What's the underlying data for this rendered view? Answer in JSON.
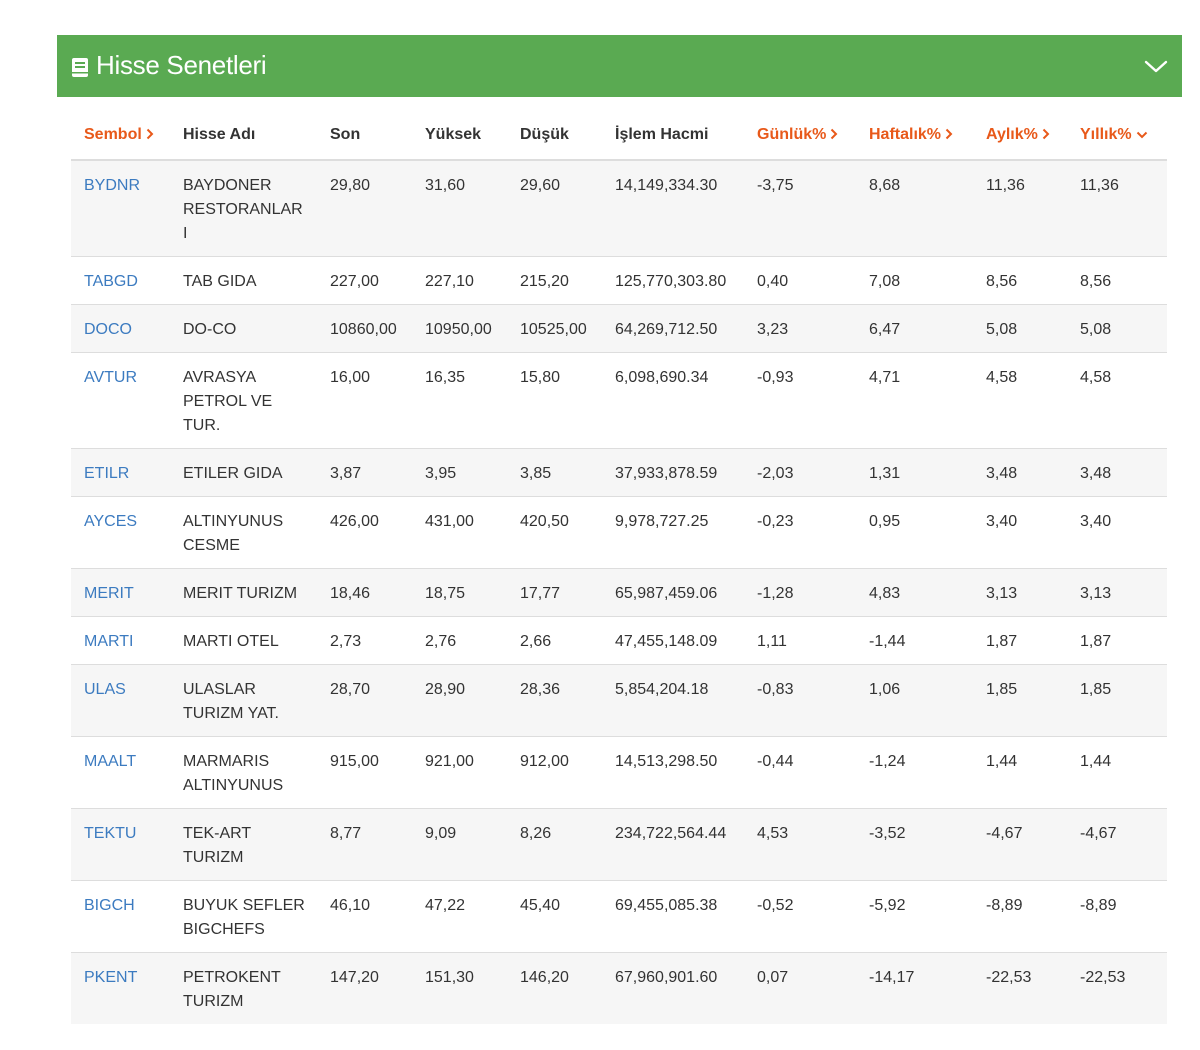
{
  "panel": {
    "title": "Hisse Senetleri",
    "book_icon": "book-icon",
    "collapse_icon": "chevron-down-icon",
    "header_color": "#5aaa52"
  },
  "colors": {
    "accent_sort": "#e8591a",
    "symbol_link": "#3c7bc0"
  },
  "table": {
    "headers": {
      "sembol": "Sembol",
      "hisse_adi": "Hisse Adı",
      "son": "Son",
      "yuksek": "Yüksek",
      "dusuk": "Düşük",
      "islem_hacmi": "İşlem Hacmi",
      "gunluk": "Günlük%",
      "haftalik": "Haftalık%",
      "aylik": "Aylık%",
      "yillik": "Yıllık%"
    },
    "rows": [
      {
        "symbol": "BYDNR",
        "name": "BAYDONER RESTORANLARI",
        "son": "29,80",
        "yuksek": "31,60",
        "dusuk": "29,60",
        "hacim": "14,149,334.30",
        "gunluk": "-3,75",
        "haftalik": "8,68",
        "aylik": "11,36",
        "yillik": "11,36"
      },
      {
        "symbol": "TABGD",
        "name": "TAB GIDA",
        "son": "227,00",
        "yuksek": "227,10",
        "dusuk": "215,20",
        "hacim": "125,770,303.80",
        "gunluk": "0,40",
        "haftalik": "7,08",
        "aylik": "8,56",
        "yillik": "8,56"
      },
      {
        "symbol": "DOCO",
        "name": "DO-CO",
        "son": "10860,00",
        "yuksek": "10950,00",
        "dusuk": "10525,00",
        "hacim": "64,269,712.50",
        "gunluk": "3,23",
        "haftalik": "6,47",
        "aylik": "5,08",
        "yillik": "5,08"
      },
      {
        "symbol": "AVTUR",
        "name": "AVRASYA PETROL VE TUR.",
        "son": "16,00",
        "yuksek": "16,35",
        "dusuk": "15,80",
        "hacim": "6,098,690.34",
        "gunluk": "-0,93",
        "haftalik": "4,71",
        "aylik": "4,58",
        "yillik": "4,58"
      },
      {
        "symbol": "ETILR",
        "name": "ETILER GIDA",
        "son": "3,87",
        "yuksek": "3,95",
        "dusuk": "3,85",
        "hacim": "37,933,878.59",
        "gunluk": "-2,03",
        "haftalik": "1,31",
        "aylik": "3,48",
        "yillik": "3,48"
      },
      {
        "symbol": "AYCES",
        "name": "ALTINYUNUS CESME",
        "son": "426,00",
        "yuksek": "431,00",
        "dusuk": "420,50",
        "hacim": "9,978,727.25",
        "gunluk": "-0,23",
        "haftalik": "0,95",
        "aylik": "3,40",
        "yillik": "3,40"
      },
      {
        "symbol": "MERIT",
        "name": "MERIT TURIZM",
        "son": "18,46",
        "yuksek": "18,75",
        "dusuk": "17,77",
        "hacim": "65,987,459.06",
        "gunluk": "-1,28",
        "haftalik": "4,83",
        "aylik": "3,13",
        "yillik": "3,13"
      },
      {
        "symbol": "MARTI",
        "name": "MARTI OTEL",
        "son": "2,73",
        "yuksek": "2,76",
        "dusuk": "2,66",
        "hacim": "47,455,148.09",
        "gunluk": "1,11",
        "haftalik": "-1,44",
        "aylik": "1,87",
        "yillik": "1,87"
      },
      {
        "symbol": "ULAS",
        "name": "ULASLAR TURIZM YAT.",
        "son": "28,70",
        "yuksek": "28,90",
        "dusuk": "28,36",
        "hacim": "5,854,204.18",
        "gunluk": "-0,83",
        "haftalik": "1,06",
        "aylik": "1,85",
        "yillik": "1,85"
      },
      {
        "symbol": "MAALT",
        "name": "MARMARIS ALTINYUNUS",
        "son": "915,00",
        "yuksek": "921,00",
        "dusuk": "912,00",
        "hacim": "14,513,298.50",
        "gunluk": "-0,44",
        "haftalik": "-1,24",
        "aylik": "1,44",
        "yillik": "1,44"
      },
      {
        "symbol": "TEKTU",
        "name": "TEK-ART TURIZM",
        "son": "8,77",
        "yuksek": "9,09",
        "dusuk": "8,26",
        "hacim": "234,722,564.44",
        "gunluk": "4,53",
        "haftalik": "-3,52",
        "aylik": "-4,67",
        "yillik": "-4,67"
      },
      {
        "symbol": "BIGCH",
        "name": "BUYUK SEFLER BIGCHEFS",
        "son": "46,10",
        "yuksek": "47,22",
        "dusuk": "45,40",
        "hacim": "69,455,085.38",
        "gunluk": "-0,52",
        "haftalik": "-5,92",
        "aylik": "-8,89",
        "yillik": "-8,89"
      },
      {
        "symbol": "PKENT",
        "name": "PETROKENT TURIZM",
        "son": "147,20",
        "yuksek": "151,30",
        "dusuk": "146,20",
        "hacim": "67,960,901.60",
        "gunluk": "0,07",
        "haftalik": "-14,17",
        "aylik": "-22,53",
        "yillik": "-22,53"
      }
    ]
  }
}
